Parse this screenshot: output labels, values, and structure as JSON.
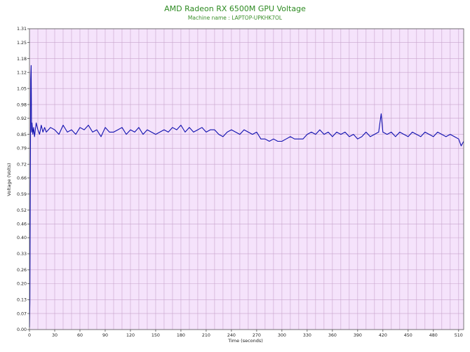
{
  "chart_data": {
    "type": "line",
    "title": "AMD Radeon RX 6500M GPU Voltage",
    "subtitle": "Machine name : LAPTOP-UPKHK7OL",
    "xlabel": "Time (seconds)",
    "ylabel": "Voltage (Volts)",
    "xlim": [
      0,
      516
    ],
    "ylim": [
      0,
      1.31
    ],
    "x_ticks": [
      0,
      30,
      60,
      90,
      120,
      150,
      180,
      210,
      240,
      270,
      300,
      330,
      360,
      390,
      420,
      450,
      480,
      510
    ],
    "y_ticks": [
      0.0,
      0.07,
      0.13,
      0.2,
      0.26,
      0.33,
      0.4,
      0.46,
      0.52,
      0.59,
      0.66,
      0.72,
      0.79,
      0.85,
      0.92,
      0.98,
      1.05,
      1.12,
      1.18,
      1.25,
      1.31
    ],
    "y_tick_labels": [
      "0.00",
      "0.07",
      "0.13",
      "0.20",
      "0.26",
      "0.33",
      "0.40",
      "0.46",
      "0.52",
      "0.59",
      "0.66",
      "0.72",
      "0.79",
      "0.85",
      "0.92",
      "0.98",
      "1.05",
      "1.12",
      "1.18",
      "1.25",
      "1.31"
    ],
    "grid": true,
    "colors": {
      "line": "#1010b0",
      "plot_background": "#f5e3fb",
      "grid": "#c8a4cc",
      "title": "#2e8b22",
      "subtitle": "#3a8f2a",
      "text": "#202020"
    },
    "series": [
      {
        "x": [
          0,
          0.5,
          1,
          1.5,
          2,
          2.5,
          3,
          4,
          5,
          6,
          8,
          10,
          12,
          14,
          16,
          18,
          20,
          25,
          30,
          35,
          40,
          45,
          50,
          55,
          60,
          65,
          70,
          75,
          80,
          85,
          90,
          95,
          100,
          105,
          110,
          115,
          120,
          125,
          130,
          135,
          140,
          145,
          150,
          155,
          160,
          165,
          170,
          175,
          180,
          185,
          190,
          195,
          200,
          205,
          210,
          215,
          220,
          225,
          230,
          235,
          240,
          245,
          250,
          255,
          260,
          265,
          270,
          275,
          280,
          285,
          290,
          295,
          300,
          305,
          310,
          315,
          320,
          325,
          330,
          335,
          340,
          345,
          350,
          355,
          360,
          365,
          370,
          375,
          380,
          385,
          390,
          395,
          400,
          405,
          410,
          415,
          418,
          420,
          425,
          430,
          435,
          440,
          445,
          450,
          455,
          460,
          465,
          470,
          475,
          480,
          485,
          490,
          495,
          500,
          505,
          510,
          513,
          516
        ],
        "y": [
          0.01,
          0.12,
          0.62,
          1.09,
          1.15,
          0.86,
          0.9,
          0.85,
          0.88,
          0.84,
          0.9,
          0.87,
          0.85,
          0.89,
          0.86,
          0.88,
          0.86,
          0.88,
          0.87,
          0.85,
          0.89,
          0.86,
          0.87,
          0.85,
          0.88,
          0.87,
          0.89,
          0.86,
          0.87,
          0.84,
          0.88,
          0.86,
          0.86,
          0.87,
          0.88,
          0.85,
          0.87,
          0.86,
          0.88,
          0.85,
          0.87,
          0.86,
          0.85,
          0.86,
          0.87,
          0.86,
          0.88,
          0.87,
          0.89,
          0.86,
          0.88,
          0.86,
          0.87,
          0.88,
          0.86,
          0.87,
          0.87,
          0.85,
          0.84,
          0.86,
          0.87,
          0.86,
          0.85,
          0.87,
          0.86,
          0.85,
          0.86,
          0.83,
          0.83,
          0.82,
          0.83,
          0.82,
          0.82,
          0.83,
          0.84,
          0.83,
          0.83,
          0.83,
          0.85,
          0.86,
          0.85,
          0.87,
          0.85,
          0.86,
          0.84,
          0.86,
          0.85,
          0.86,
          0.84,
          0.85,
          0.83,
          0.84,
          0.86,
          0.84,
          0.85,
          0.86,
          0.94,
          0.86,
          0.85,
          0.86,
          0.84,
          0.86,
          0.85,
          0.84,
          0.86,
          0.85,
          0.84,
          0.86,
          0.85,
          0.84,
          0.86,
          0.85,
          0.84,
          0.85,
          0.84,
          0.83,
          0.8,
          0.82
        ]
      }
    ]
  }
}
